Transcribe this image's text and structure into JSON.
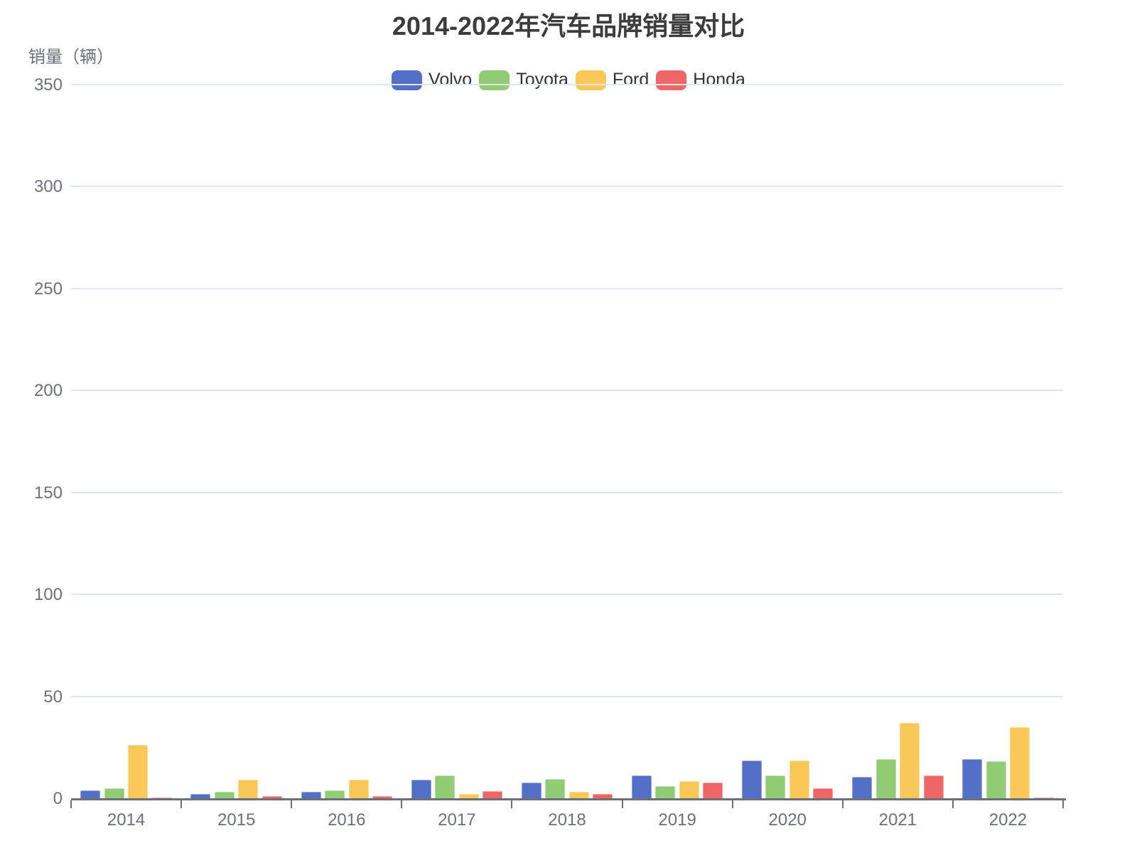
{
  "title": "2014-2022年汽车品牌销量对比",
  "y_axis_name": "销量（辆）",
  "palette": {
    "volvo": "#5470c6",
    "toyota": "#91cc75",
    "ford": "#fac858",
    "honda": "#ee6666",
    "axis_color": "#6E7079",
    "grid_color": "#E0E6F1",
    "legend_text_color": "#333333",
    "title_color": "#3c3c3c"
  },
  "chart_data": {
    "type": "bar",
    "title": "2014-2022年汽车品牌销量对比",
    "xlabel": "",
    "ylabel": "销量（辆）",
    "categories": [
      "2014",
      "2015",
      "2016",
      "2017",
      "2018",
      "2019",
      "2020",
      "2021",
      "2022"
    ],
    "series": [
      {
        "name": "Volvo",
        "color": "#5470c6",
        "values": [
          4,
          2,
          3,
          9,
          7.5,
          11,
          18.5,
          10.5,
          19
        ]
      },
      {
        "name": "Toyota",
        "color": "#91cc75",
        "values": [
          5,
          3,
          4,
          11,
          9.5,
          6,
          11,
          19,
          18
        ]
      },
      {
        "name": "Ford",
        "color": "#fac858",
        "values": [
          26,
          9,
          9,
          2,
          3,
          8.5,
          18.5,
          37,
          35
        ]
      },
      {
        "name": "Honda",
        "color": "#ee6666",
        "values": [
          0.5,
          1,
          1,
          3.5,
          2,
          7.5,
          5,
          11,
          0.5
        ]
      }
    ],
    "ylim": [
      0,
      350
    ],
    "ytick_step": 50,
    "grid": true,
    "legend_position": "top-center"
  }
}
